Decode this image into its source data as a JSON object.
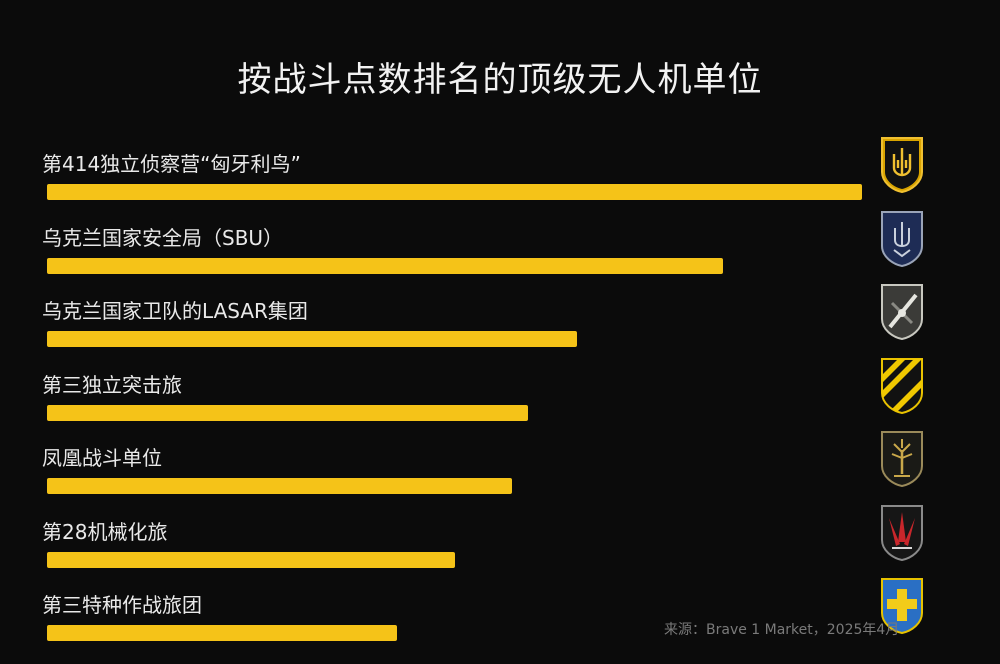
{
  "chart_data": {
    "type": "bar",
    "orientation": "horizontal",
    "title": "按战斗点数排名的顶级无人机单位",
    "categories": [
      "第414独立侦察营“匈牙利鸟”",
      "乌克兰国家安全局（SBU）",
      "乌克兰国家卫队的LASAR集团",
      "第三独立突击旅",
      "凤凰战斗单位",
      "第28机械化旅",
      "第三特种作战旅团"
    ],
    "values": [
      100,
      83,
      65,
      59,
      57,
      50,
      43
    ],
    "xlim": [
      0,
      100
    ],
    "grid": false,
    "legend": "none",
    "badges": [
      "trident-badge",
      "sbu-badge",
      "lasar-badge",
      "assault-stripes-badge",
      "phoenix-tree-badge",
      "mechanized-badge",
      "special-ops-cross-badge"
    ]
  },
  "source": "来源：Brave 1 Market，2025年4月",
  "colors": {
    "bar": "#f5c318",
    "background": "#0b0b0b",
    "text": "#e9e9e9"
  }
}
